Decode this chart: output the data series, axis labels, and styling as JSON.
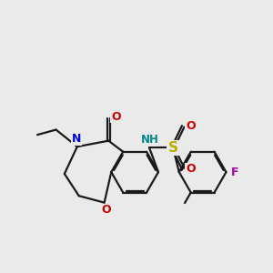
{
  "bg_color": "#eaeaea",
  "lc": "#1a1a1a",
  "lw": 1.6,
  "dbo": 0.048,
  "N_color": "#0000dd",
  "O_color": "#cc0000",
  "S_color": "#bbaa00",
  "F_color": "#aa00aa",
  "NH_color": "#008888",
  "fs": 9.0,
  "xlim": [
    0,
    10
  ],
  "ylim": [
    0,
    10
  ]
}
